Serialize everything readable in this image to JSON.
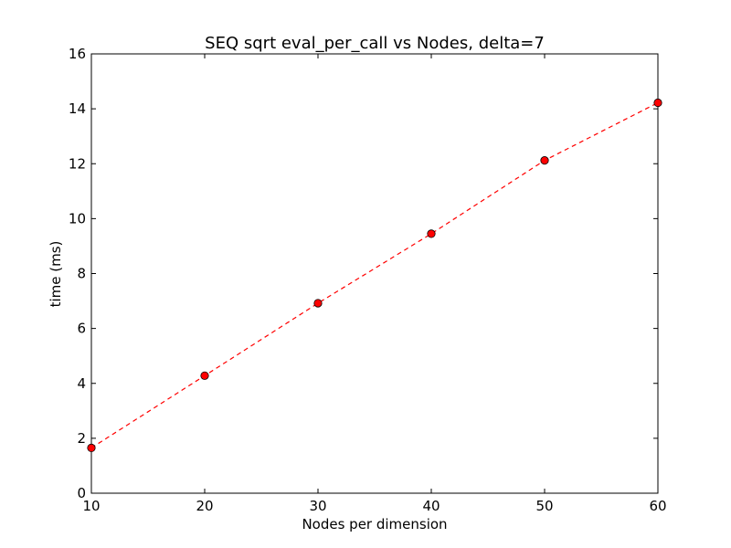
{
  "chart_data": {
    "type": "line",
    "title": "SEQ sqrt eval_per_call vs Nodes, delta=7",
    "xlabel": "Nodes per dimension",
    "ylabel": "time (ms)",
    "xlim": [
      10,
      60
    ],
    "ylim": [
      0,
      16
    ],
    "xticks": [
      10,
      20,
      30,
      40,
      50,
      60
    ],
    "yticks": [
      0,
      2,
      4,
      6,
      8,
      10,
      12,
      14,
      16
    ],
    "grid": false,
    "series": [
      {
        "x": [
          10,
          20,
          30,
          40,
          50,
          60
        ],
        "values": [
          1.65,
          4.28,
          6.92,
          9.45,
          12.12,
          14.22
        ],
        "color": "#ff0000",
        "line_style": "dashed",
        "marker": "circle"
      }
    ]
  }
}
